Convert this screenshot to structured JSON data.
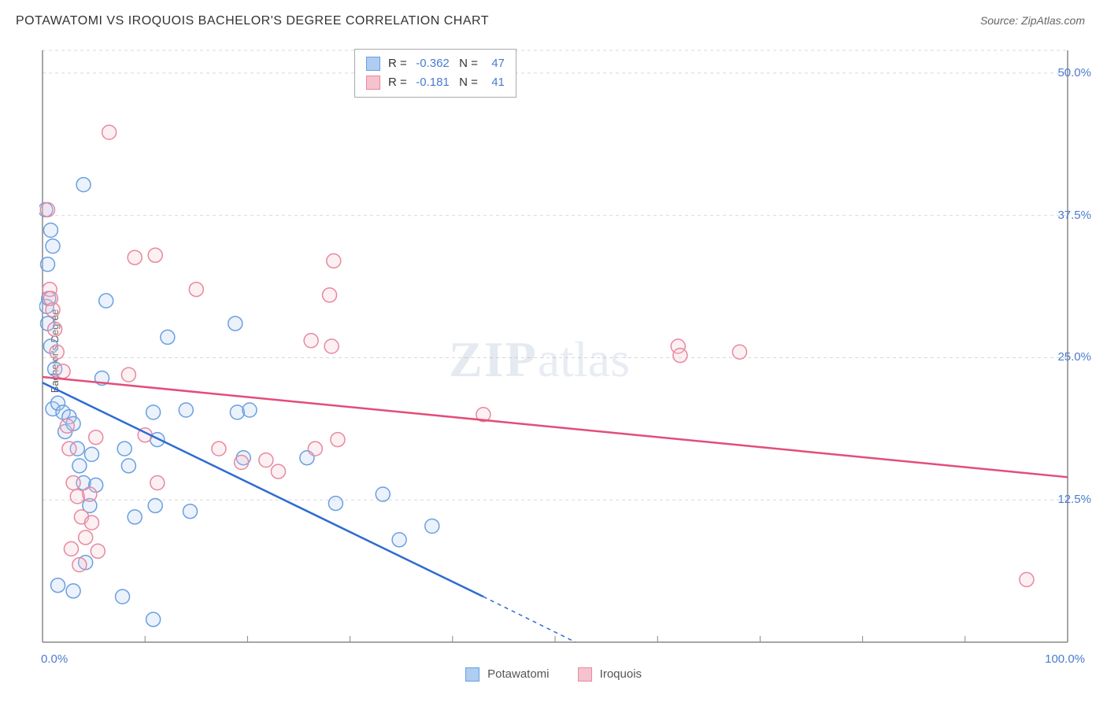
{
  "title": "POTAWATOMI VS IROQUOIS BACHELOR'S DEGREE CORRELATION CHART",
  "source": "Source: ZipAtlas.com",
  "watermark_zip": "ZIP",
  "watermark_atlas": "atlas",
  "y_axis_label": "Bachelor's Degree",
  "chart": {
    "type": "scatter",
    "background_color": "#ffffff",
    "grid_color": "#d8d8d8",
    "axis_color": "#888888",
    "xlim": [
      0,
      100
    ],
    "ylim": [
      0,
      52
    ],
    "y_ticks": [
      12.5,
      25.0,
      37.5,
      50.0
    ],
    "y_tick_labels": [
      "12.5%",
      "25.0%",
      "37.5%",
      "50.0%"
    ],
    "x_tick_labels": {
      "left": "0.0%",
      "right": "100.0%"
    },
    "x_minor_ticks_count": 10,
    "marker_radius": 9,
    "marker_stroke_width": 1.5,
    "marker_fill_opacity": 0.25,
    "line_width": 2.5
  },
  "series": [
    {
      "name": "Potawatomi",
      "color_stroke": "#6a9fe0",
      "color_fill": "#aecdf0",
      "line_color": "#2d6bd1",
      "R": "-0.362",
      "N": "47",
      "trend": {
        "x1": 0,
        "y1": 22.8,
        "x2": 43,
        "y2": 4.0,
        "dash_after_x": 43,
        "dash_x2": 52,
        "dash_y2": 0
      },
      "points": [
        [
          0.3,
          38.0
        ],
        [
          0.5,
          33.2
        ],
        [
          0.4,
          29.5
        ],
        [
          0.5,
          28.0
        ],
        [
          0.6,
          30.2
        ],
        [
          4.0,
          40.2
        ],
        [
          0.8,
          26.0
        ],
        [
          1.2,
          24.0
        ],
        [
          1.0,
          20.5
        ],
        [
          1.5,
          21.0
        ],
        [
          2.0,
          20.2
        ],
        [
          2.2,
          18.5
        ],
        [
          2.6,
          19.8
        ],
        [
          3.0,
          19.2
        ],
        [
          3.4,
          17.0
        ],
        [
          3.6,
          15.5
        ],
        [
          4.0,
          14.0
        ],
        [
          4.6,
          12.0
        ],
        [
          5.2,
          13.8
        ],
        [
          4.8,
          16.5
        ],
        [
          5.8,
          23.2
        ],
        [
          6.2,
          30.0
        ],
        [
          8.0,
          17.0
        ],
        [
          8.4,
          15.5
        ],
        [
          9.0,
          11.0
        ],
        [
          10.8,
          20.2
        ],
        [
          11.2,
          17.8
        ],
        [
          11.0,
          12.0
        ],
        [
          12.2,
          26.8
        ],
        [
          14.0,
          20.4
        ],
        [
          14.4,
          11.5
        ],
        [
          19.0,
          20.2
        ],
        [
          18.8,
          28.0
        ],
        [
          19.6,
          16.2
        ],
        [
          20.2,
          20.4
        ],
        [
          25.8,
          16.2
        ],
        [
          28.6,
          12.2
        ],
        [
          33.2,
          13.0
        ],
        [
          34.8,
          9.0
        ],
        [
          38.0,
          10.2
        ],
        [
          3.0,
          4.5
        ],
        [
          1.5,
          5.0
        ],
        [
          4.2,
          7.0
        ],
        [
          7.8,
          4.0
        ],
        [
          10.8,
          2.0
        ],
        [
          1.0,
          34.8
        ],
        [
          0.8,
          36.2
        ]
      ]
    },
    {
      "name": "Iroquois",
      "color_stroke": "#e8889f",
      "color_fill": "#f4c3ce",
      "line_color": "#e34d79",
      "R": "-0.181",
      "N": "41",
      "trend": {
        "x1": 0,
        "y1": 23.3,
        "x2": 100,
        "y2": 14.5
      },
      "points": [
        [
          0.5,
          38.0
        ],
        [
          0.7,
          31.0
        ],
        [
          0.8,
          30.2
        ],
        [
          1.0,
          29.2
        ],
        [
          1.2,
          27.5
        ],
        [
          2.0,
          23.8
        ],
        [
          2.4,
          19.0
        ],
        [
          2.6,
          17.0
        ],
        [
          3.0,
          14.0
        ],
        [
          3.4,
          12.8
        ],
        [
          3.8,
          11.0
        ],
        [
          4.2,
          9.2
        ],
        [
          4.6,
          13.0
        ],
        [
          5.2,
          18.0
        ],
        [
          5.4,
          8.0
        ],
        [
          6.5,
          44.8
        ],
        [
          8.4,
          23.5
        ],
        [
          9.0,
          33.8
        ],
        [
          10.0,
          18.2
        ],
        [
          11.2,
          14.0
        ],
        [
          11.0,
          34.0
        ],
        [
          15.0,
          31.0
        ],
        [
          17.2,
          17.0
        ],
        [
          19.4,
          15.8
        ],
        [
          21.8,
          16.0
        ],
        [
          23.0,
          15.0
        ],
        [
          26.6,
          17.0
        ],
        [
          26.2,
          26.5
        ],
        [
          28.4,
          33.5
        ],
        [
          28.0,
          30.5
        ],
        [
          28.8,
          17.8
        ],
        [
          28.2,
          26.0
        ],
        [
          43.0,
          20.0
        ],
        [
          62.0,
          26.0
        ],
        [
          62.2,
          25.2
        ],
        [
          68.0,
          25.5
        ],
        [
          96.0,
          5.5
        ],
        [
          2.8,
          8.2
        ],
        [
          3.6,
          6.8
        ],
        [
          4.8,
          10.5
        ],
        [
          1.4,
          25.5
        ]
      ]
    }
  ],
  "stats_box": {
    "R_label": "R =",
    "N_label": "N ="
  },
  "bottom_legend": {
    "items": [
      "Potawatomi",
      "Iroquois"
    ]
  }
}
